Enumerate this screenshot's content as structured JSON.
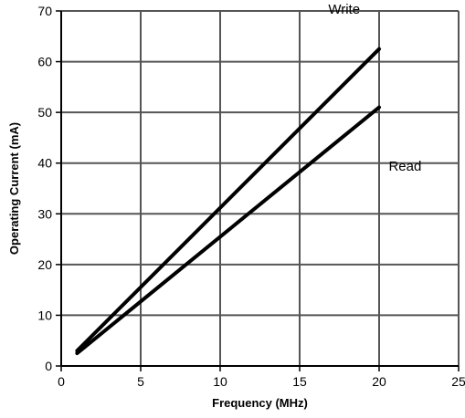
{
  "chart_data": {
    "type": "line",
    "xlabel": "Frequency (MHz)",
    "ylabel": "Operating Current  (mA)",
    "xlim": [
      0,
      25
    ],
    "ylim": [
      0,
      70
    ],
    "x_ticks": [
      "0",
      "5",
      "10",
      "15",
      "20",
      "25"
    ],
    "y_ticks": [
      "0",
      "10",
      "20",
      "30",
      "40",
      "50",
      "60",
      "70"
    ],
    "grid": true,
    "series": [
      {
        "name": "Write",
        "x": [
          1,
          20
        ],
        "y": [
          3,
          62.5
        ]
      },
      {
        "name": "Read",
        "x": [
          1,
          20
        ],
        "y": [
          2.5,
          51
        ]
      }
    ]
  }
}
